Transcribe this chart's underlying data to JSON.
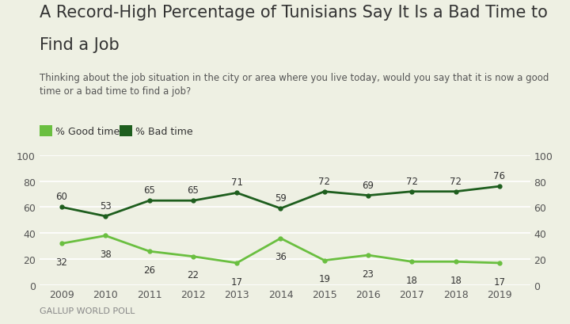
{
  "title_line1": "A Record-High Percentage of Tunisians Say It Is a Bad Time to",
  "title_line2": "Find a Job",
  "subtitle": "Thinking about the job situation in the city or area where you live today, would you say that it is now a good\ntime or a bad time to find a job?",
  "source": "GALLUP WORLD POLL",
  "years": [
    2009,
    2010,
    2011,
    2012,
    2013,
    2014,
    2015,
    2016,
    2017,
    2018,
    2019
  ],
  "good_time": [
    32,
    38,
    26,
    22,
    17,
    36,
    19,
    23,
    18,
    18,
    17
  ],
  "bad_time": [
    60,
    53,
    65,
    65,
    71,
    59,
    72,
    69,
    72,
    72,
    76
  ],
  "good_color": "#6abf40",
  "bad_color": "#1e5e1e",
  "background_color": "#eef0e3",
  "grid_color": "#ffffff",
  "legend_good": "% Good time",
  "legend_bad": "% Bad time",
  "ylim": [
    0,
    100
  ],
  "yticks": [
    0,
    20,
    40,
    60,
    80,
    100
  ],
  "title_fontsize": 15,
  "subtitle_fontsize": 8.5,
  "tick_fontsize": 9,
  "label_fontsize": 8.5,
  "source_fontsize": 8,
  "legend_fontsize": 9
}
